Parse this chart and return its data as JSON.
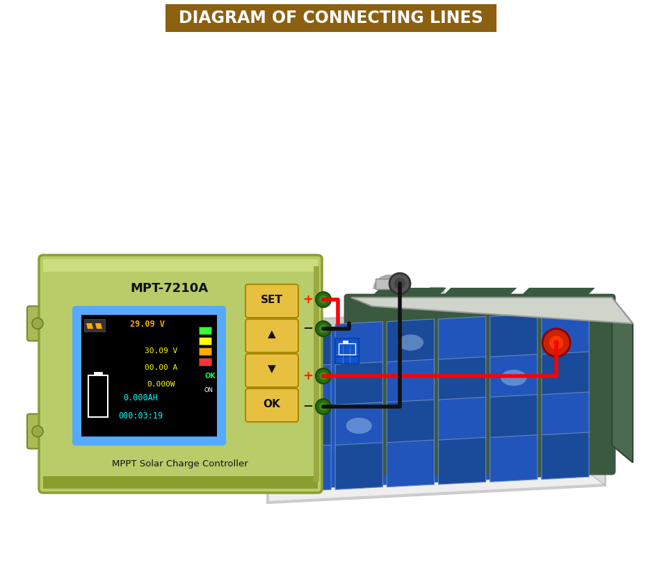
{
  "title": "DIAGRAM OF CONNECTING LINES",
  "title_bg": "#8B6010",
  "title_color": "#FFFFFF",
  "bg_color": "#FFFFFF",
  "controller_color_main": "#B8CC6A",
  "controller_color_edge": "#8A9E30",
  "controller_color_shadow": "#9AAA45",
  "controller_label": "MPT-7210A",
  "controller_sublabel": "MPPT Solar Charge Controller",
  "display_bg": "#000000",
  "display_border": "#55AAFF",
  "buttons": [
    "SET",
    "▲",
    "▼",
    "OK"
  ],
  "btn_color": "#E8C040",
  "btn_edge": "#AA8800",
  "wire_red": "#FF0000",
  "wire_black": "#111111",
  "plus_color": "#FF2200",
  "minus_color": "#222222",
  "solar_panel_frame": "#E8E8E8",
  "solar_cell_dark": "#1A4A9A",
  "solar_cell_mid": "#2255BB",
  "solar_cell_light": "#3366CC",
  "solar_reflect": "#88BBEE",
  "grass_dark": "#3A9A18",
  "grass_mid": "#4DB820",
  "grass_light": "#66CC33",
  "battery_body": "#3A5A40",
  "battery_top": "#D0D5CC",
  "battery_side": "#2A4A30",
  "terminal_neg_color": "#444444",
  "terminal_pos_color": "#DD2200"
}
